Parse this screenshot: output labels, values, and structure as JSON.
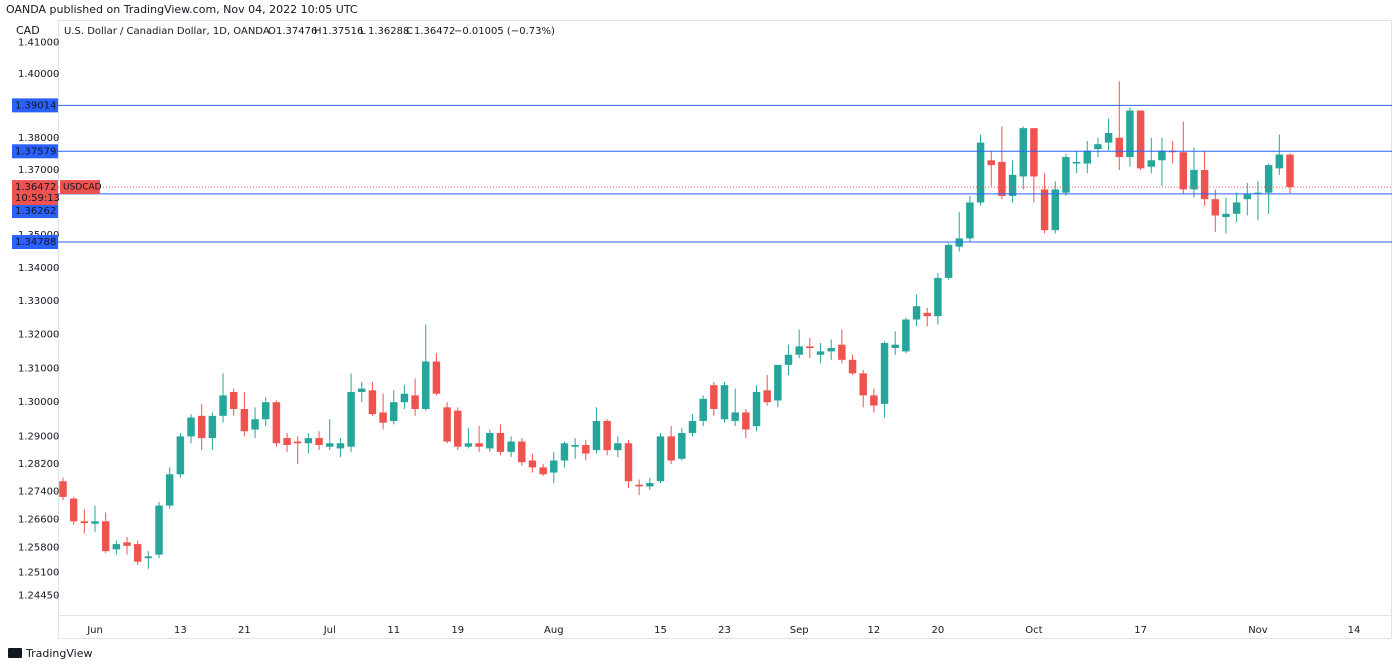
{
  "chart_data": {
    "type": "candlestick",
    "publisher": "OANDA published on TradingView.com, Nov 04, 2022 10:05 UTC",
    "unit": "CAD",
    "title": "U.S. Dollar / Canadian Dollar, 1D, OANDA",
    "ohlc_keys": [
      "O",
      "H",
      "L",
      "C"
    ],
    "change": "−0.01005 (−0.73%)",
    "symbol": "USDCAD",
    "countdown": "10:59:13",
    "brand": "TradingView",
    "up_color": "#26a69a",
    "down_color": "#ef5350",
    "line_color": "#2962ff",
    "log_scale": true,
    "grid": false,
    "ylim": [
      1.239,
      1.414
    ],
    "yticks": [
      {
        "value": 1.41,
        "label": "1.41000"
      },
      {
        "value": 1.4,
        "label": "1.40000"
      },
      {
        "value": 1.38,
        "label": "1.38000"
      },
      {
        "value": 1.37,
        "label": "1.37000"
      },
      {
        "value": 1.35,
        "label": "1.35000"
      },
      {
        "value": 1.34,
        "label": "1.34000"
      },
      {
        "value": 1.33,
        "label": "1.33000"
      },
      {
        "value": 1.32,
        "label": "1.32000"
      },
      {
        "value": 1.31,
        "label": "1.31000"
      },
      {
        "value": 1.3,
        "label": "1.30000"
      },
      {
        "value": 1.29,
        "label": "1.29000"
      },
      {
        "value": 1.282,
        "label": "1.28200"
      },
      {
        "value": 1.274,
        "label": "1.27400"
      },
      {
        "value": 1.266,
        "label": "1.26600"
      },
      {
        "value": 1.258,
        "label": "1.25800"
      },
      {
        "value": 1.251,
        "label": "1.25100"
      },
      {
        "value": 1.2445,
        "label": "1.24450"
      }
    ],
    "price_lines": [
      1.39014,
      1.37579,
      1.36262,
      1.34788
    ],
    "last_price": 1.36472,
    "categories": [
      null,
      null,
      null,
      "Jun",
      null,
      null,
      null,
      null,
      null,
      null,
      null,
      "13",
      null,
      null,
      null,
      null,
      null,
      "21",
      null,
      null,
      null,
      null,
      null,
      null,
      null,
      "Jul",
      null,
      null,
      null,
      null,
      null,
      "11",
      null,
      null,
      null,
      null,
      null,
      "19",
      null,
      null,
      null,
      null,
      null,
      null,
      null,
      null,
      "Aug",
      null,
      null,
      null,
      null,
      null,
      null,
      null,
      null,
      null,
      "15",
      null,
      null,
      null,
      null,
      null,
      "23",
      null,
      null,
      null,
      null,
      null,
      null,
      "Sep",
      null,
      null,
      null,
      null,
      null,
      null,
      "12",
      null,
      null,
      null,
      null,
      null,
      "20",
      null,
      null,
      null,
      null,
      null,
      null,
      null,
      null,
      "Oct",
      null,
      null,
      null,
      null,
      null,
      null,
      null,
      null,
      null,
      "17",
      null,
      null,
      null,
      null,
      null,
      null,
      null,
      null,
      null,
      null,
      "Nov",
      null,
      null,
      null,
      null,
      null,
      null,
      null,
      null,
      "14"
    ],
    "open": [
      1.277,
      1.272,
      1.2655,
      1.2648,
      1.2655,
      1.2575,
      1.2595,
      1.259,
      1.255,
      1.256,
      1.27,
      1.279,
      1.29,
      1.296,
      1.2895,
      1.296,
      1.303,
      1.298,
      1.292,
      1.295,
      1.3,
      1.2895,
      1.2885,
      1.288,
      1.2895,
      1.287,
      1.2865,
      1.287,
      1.303,
      1.3035,
      1.297,
      1.2945,
      1.3,
      1.302,
      1.298,
      1.312,
      1.2985,
      1.2975,
      1.287,
      1.288,
      1.2865,
      1.291,
      1.2855,
      1.2885,
      1.283,
      1.281,
      1.2795,
      1.283,
      1.287,
      1.2875,
      1.286,
      1.2945,
      1.286,
      1.288,
      1.276,
      1.2755,
      1.277,
      1.29,
      1.2835,
      1.291,
      1.2945,
      1.305,
      1.295,
      1.2945,
      1.297,
      1.293,
      1.3035,
      1.3005,
      1.311,
      1.314,
      1.3165,
      1.314,
      1.315,
      1.317,
      1.3125,
      1.3085,
      1.302,
      1.2995,
      1.316,
      1.315,
      1.3245,
      1.3265,
      1.3255,
      1.337,
      1.3465,
      1.349,
      1.36,
      1.373,
      1.3725,
      1.362,
      1.368,
      1.383,
      1.364,
      1.3515,
      1.363,
      1.372,
      1.372,
      1.3765,
      1.3785,
      1.38,
      1.374,
      1.3885,
      1.371,
      1.373,
      1.376,
      1.3755,
      1.364,
      1.37,
      1.361,
      1.3555,
      1.3565,
      1.361,
      1.3625,
      1.363,
      1.3705,
      1.37476,
      null,
      null,
      null,
      null,
      null,
      null
    ],
    "high": [
      1.278,
      1.2725,
      1.269,
      1.27,
      1.268,
      1.26,
      1.261,
      1.26,
      1.257,
      1.271,
      1.281,
      1.291,
      1.2965,
      1.2995,
      1.297,
      1.3085,
      1.304,
      1.303,
      1.2985,
      1.3015,
      1.3005,
      1.291,
      1.29,
      1.291,
      1.2915,
      1.295,
      1.2895,
      1.3085,
      1.306,
      1.306,
      1.3025,
      1.3035,
      1.305,
      1.307,
      1.323,
      1.3145,
      1.3,
      1.2985,
      1.2925,
      1.293,
      1.292,
      1.2935,
      1.29,
      1.2895,
      1.285,
      1.282,
      1.2855,
      1.2885,
      1.2895,
      1.289,
      1.2985,
      1.295,
      1.29,
      1.289,
      1.2775,
      1.278,
      1.291,
      1.293,
      1.2925,
      1.2965,
      1.302,
      1.306,
      1.306,
      1.304,
      1.298,
      1.305,
      1.308,
      1.311,
      1.317,
      1.3215,
      1.319,
      1.3175,
      1.3185,
      1.3215,
      1.314,
      1.3095,
      1.304,
      1.318,
      1.321,
      1.325,
      1.332,
      1.328,
      1.3385,
      1.3475,
      1.357,
      1.362,
      1.381,
      1.376,
      1.3835,
      1.373,
      1.3835,
      1.383,
      1.369,
      1.3665,
      1.375,
      1.376,
      1.379,
      1.38,
      1.386,
      1.3977,
      1.3895,
      1.3885,
      1.38,
      1.38,
      1.379,
      1.385,
      1.377,
      1.376,
      1.364,
      1.3615,
      1.363,
      1.366,
      1.3665,
      1.372,
      1.381,
      1.37516,
      null,
      null,
      null,
      null,
      null,
      null
    ],
    "low": [
      1.2715,
      1.2645,
      1.262,
      1.2625,
      1.2565,
      1.256,
      1.256,
      1.253,
      1.252,
      1.255,
      1.269,
      1.278,
      1.288,
      1.286,
      1.286,
      1.294,
      1.296,
      1.29,
      1.2895,
      1.293,
      1.287,
      1.2855,
      1.282,
      1.285,
      1.286,
      1.286,
      1.284,
      1.2855,
      1.3,
      1.296,
      1.292,
      1.2935,
      1.298,
      1.296,
      1.2975,
      1.302,
      1.288,
      1.286,
      1.2865,
      1.2855,
      1.2855,
      1.2845,
      1.284,
      1.2815,
      1.2795,
      1.2785,
      1.2765,
      1.281,
      1.2835,
      1.283,
      1.285,
      1.2845,
      1.284,
      1.275,
      1.273,
      1.2745,
      1.2765,
      1.282,
      1.283,
      1.29,
      1.293,
      1.296,
      1.294,
      1.293,
      1.2895,
      1.2915,
      1.299,
      1.2985,
      1.308,
      1.313,
      1.313,
      1.3115,
      1.3125,
      1.3115,
      1.308,
      1.2985,
      1.297,
      1.2955,
      1.314,
      1.3145,
      1.3225,
      1.3225,
      1.323,
      1.3365,
      1.345,
      1.348,
      1.359,
      1.365,
      1.361,
      1.36,
      1.364,
      1.36,
      1.3505,
      1.3505,
      1.362,
      1.369,
      1.369,
      1.374,
      1.376,
      1.37,
      1.371,
      1.37,
      1.369,
      1.365,
      1.372,
      1.3625,
      1.3615,
      1.359,
      1.351,
      1.3505,
      1.354,
      1.356,
      1.3545,
      1.3565,
      1.3685,
      1.36288,
      null,
      null,
      null,
      null,
      null,
      null
    ],
    "close": [
      1.2725,
      1.2655,
      1.265,
      1.2655,
      1.257,
      1.259,
      1.2585,
      1.254,
      1.2555,
      1.27,
      1.279,
      1.29,
      1.2955,
      1.2895,
      1.296,
      1.302,
      1.298,
      1.2915,
      1.295,
      1.3,
      1.288,
      1.2875,
      1.288,
      1.2895,
      1.2875,
      1.288,
      1.288,
      1.303,
      1.304,
      1.2965,
      1.294,
      1.3,
      1.3025,
      1.298,
      1.312,
      1.3025,
      1.2885,
      1.287,
      1.288,
      1.287,
      1.291,
      1.2855,
      1.2885,
      1.2825,
      1.281,
      1.279,
      1.283,
      1.288,
      1.2875,
      1.285,
      1.2945,
      1.286,
      1.288,
      1.277,
      1.2755,
      1.2765,
      1.29,
      1.283,
      1.291,
      1.2945,
      1.301,
      1.298,
      1.305,
      1.297,
      1.292,
      1.303,
      1.3,
      1.311,
      1.314,
      1.3165,
      1.316,
      1.315,
      1.316,
      1.3125,
      1.3085,
      1.302,
      1.299,
      1.3175,
      1.317,
      1.3245,
      1.3285,
      1.3255,
      1.337,
      1.347,
      1.349,
      1.36,
      1.3785,
      1.3715,
      1.362,
      1.3685,
      1.383,
      1.368,
      1.3515,
      1.364,
      1.374,
      1.3725,
      1.376,
      1.378,
      1.3815,
      1.374,
      1.3885,
      1.3705,
      1.373,
      1.376,
      1.3755,
      1.364,
      1.37,
      1.361,
      1.356,
      1.3565,
      1.36,
      1.3625,
      1.363,
      1.3715,
      1.3748,
      1.36472,
      null,
      null,
      null,
      null,
      null,
      null
    ]
  }
}
